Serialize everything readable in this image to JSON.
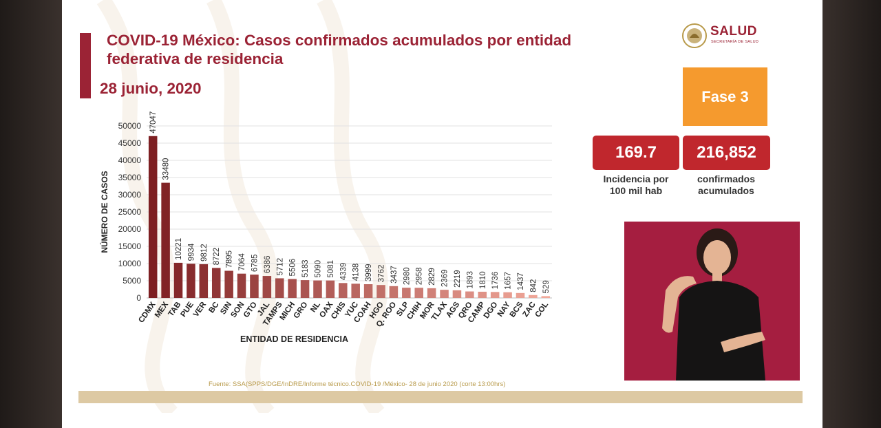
{
  "slide": {
    "title": "COVID-19 México: Casos confirmados acumulados por entidad federativa de residencia",
    "date": "28 junio, 2020",
    "logo_text": "SALUD",
    "logo_subtext": "SECRETARÍA DE SALUD",
    "phase": "Fase 3",
    "incidence_value": "169.7",
    "incidence_label_line1": "Incidencia por",
    "incidence_label_line2": "100 mil hab",
    "confirmed_value": "216,852",
    "confirmed_label_line1": "confirmados",
    "confirmed_label_line2": "acumulados",
    "source": "Fuente: SSA(SPPS/DGE/InDRE/Informe técnico.COVID-19 /México- 28 de junio 2020 (corte 13:00hrs)"
  },
  "colors": {
    "accent": "#9b2335",
    "phase": "#f59a2e",
    "kpi": "#c0272d",
    "bar_dark": "#7d1f22",
    "bar_light": "#f2a99b"
  },
  "chart_data": {
    "type": "bar",
    "xlabel": "ENTIDAD DE RESIDENCIA",
    "ylabel": "NÚMERO DE CASOS",
    "ylim": [
      0,
      50000
    ],
    "yticks": [
      0,
      5000,
      10000,
      15000,
      20000,
      25000,
      30000,
      35000,
      40000,
      45000,
      50000
    ],
    "grid": true,
    "categories": [
      "CDMX",
      "MEX",
      "TAB",
      "PUE",
      "VER",
      "BC",
      "SIN",
      "SON",
      "GTO",
      "JAL",
      "TAMPS",
      "MICH",
      "GRO",
      "NL",
      "OAX",
      "CHIS",
      "YUC",
      "COAH",
      "HGO",
      "Q. ROO",
      "SLP",
      "CHIH",
      "MOR",
      "TLAX",
      "AGS",
      "QRO",
      "CAMP",
      "DGO",
      "NAY",
      "BCS",
      "ZAC",
      "COL"
    ],
    "values": [
      47047,
      33480,
      10221,
      9934,
      9812,
      8722,
      7895,
      7064,
      6785,
      6386,
      5712,
      5506,
      5183,
      5090,
      5081,
      4339,
      4138,
      3999,
      3762,
      3437,
      2980,
      2958,
      2829,
      2369,
      2219,
      1893,
      1810,
      1736,
      1657,
      1437,
      842,
      529
    ]
  },
  "icons": {
    "logo": "mexican-coat-of-arms-icon"
  }
}
